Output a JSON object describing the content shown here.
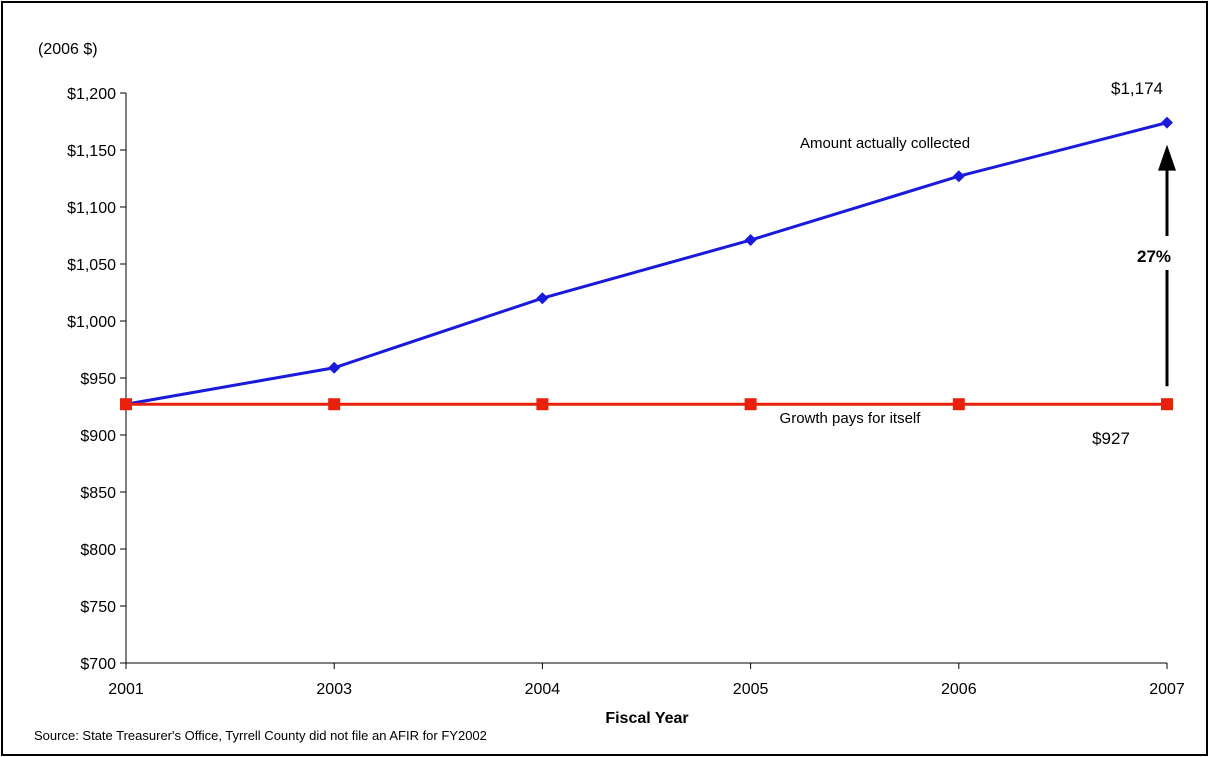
{
  "chart_data": {
    "type": "line",
    "unit_label": "(2006 $)",
    "xlabel": "Fiscal Year",
    "ylabel": "",
    "categories": [
      "2001",
      "2003",
      "2004",
      "2005",
      "2006",
      "2007"
    ],
    "ylim": [
      700,
      1200
    ],
    "yticks": [
      700,
      750,
      800,
      850,
      900,
      950,
      1000,
      1050,
      1100,
      1150,
      1200
    ],
    "ytick_labels": [
      "$700",
      "$750",
      "$800",
      "$850",
      "$900",
      "$950",
      "$1,000",
      "$1,050",
      "$1,100",
      "$1,150",
      "$1,200"
    ],
    "grid": false,
    "series": [
      {
        "name": "Amount actually collected",
        "color": "#1a1adb",
        "marker": "diamond",
        "values": [
          927,
          959,
          1020,
          1071,
          1127,
          1174
        ]
      },
      {
        "name": "Growth pays for itself",
        "color": "#e8200c",
        "marker": "square",
        "values": [
          927,
          927,
          927,
          927,
          927,
          927
        ]
      }
    ],
    "annotations": {
      "end_value_top": "$1,174",
      "end_value_bottom": "$927",
      "increase_pct": "27%"
    },
    "source": "Source: State Treasurer's Office, Tyrrell County did not file an AFIR for FY2002"
  }
}
